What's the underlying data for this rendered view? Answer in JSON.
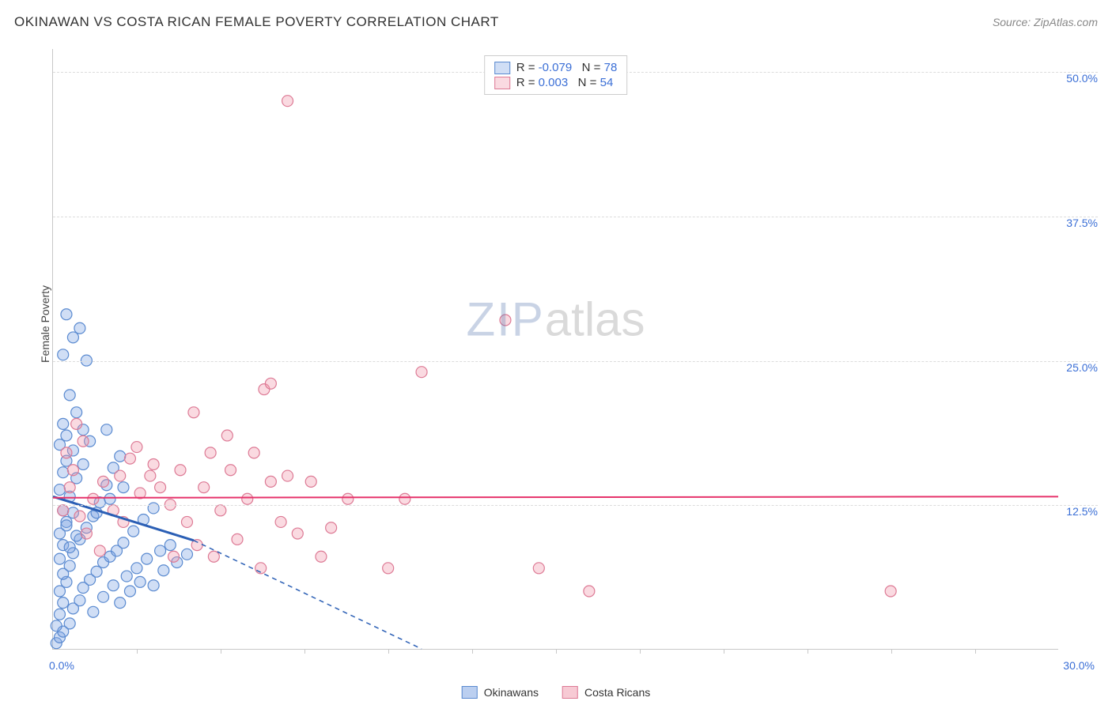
{
  "title": "OKINAWAN VS COSTA RICAN FEMALE POVERTY CORRELATION CHART",
  "source": "Source: ZipAtlas.com",
  "ylabel": "Female Poverty",
  "watermark": {
    "zip": "ZIP",
    "atlas": "atlas"
  },
  "chart": {
    "type": "scatter",
    "xlim": [
      0,
      30
    ],
    "ylim": [
      0,
      52
    ],
    "x_start_label": "0.0%",
    "x_end_label": "30.0%",
    "y_ticks": [
      {
        "v": 12.5,
        "label": "12.5%"
      },
      {
        "v": 25.0,
        "label": "25.0%"
      },
      {
        "v": 37.5,
        "label": "37.5%"
      },
      {
        "v": 50.0,
        "label": "50.0%"
      }
    ],
    "x_tick_step": 2.5,
    "background_color": "#ffffff",
    "grid_color": "#dcdcdc",
    "axis_color": "#c8c8c8",
    "marker_radius": 7,
    "marker_stroke_width": 1.2,
    "series": [
      {
        "name": "Okinawans",
        "fill": "rgba(120,160,225,0.35)",
        "stroke": "#5a8ad0",
        "r_value": "-0.079",
        "n_value": "78",
        "trend": {
          "solid_x": [
            0,
            4.2
          ],
          "solid_y": [
            13.2,
            9.4
          ],
          "dash_to_x": 11.0,
          "dash_to_y": 0,
          "color": "#2b5fb5",
          "width": 3
        },
        "points": [
          [
            0.1,
            0.5
          ],
          [
            0.2,
            1.0
          ],
          [
            0.3,
            1.5
          ],
          [
            0.1,
            2.0
          ],
          [
            0.5,
            2.2
          ],
          [
            0.2,
            3.0
          ],
          [
            0.6,
            3.5
          ],
          [
            0.3,
            4.0
          ],
          [
            0.8,
            4.2
          ],
          [
            0.2,
            5.0
          ],
          [
            0.9,
            5.3
          ],
          [
            0.4,
            5.8
          ],
          [
            1.1,
            6.0
          ],
          [
            0.3,
            6.5
          ],
          [
            1.3,
            6.7
          ],
          [
            0.5,
            7.2
          ],
          [
            1.5,
            7.5
          ],
          [
            0.2,
            7.8
          ],
          [
            1.7,
            8.0
          ],
          [
            0.6,
            8.3
          ],
          [
            1.9,
            8.5
          ],
          [
            0.3,
            9.0
          ],
          [
            2.1,
            9.2
          ],
          [
            0.8,
            9.5
          ],
          [
            0.2,
            10.0
          ],
          [
            2.4,
            10.2
          ],
          [
            1.0,
            10.5
          ],
          [
            0.4,
            11.0
          ],
          [
            2.7,
            11.2
          ],
          [
            1.2,
            11.5
          ],
          [
            0.3,
            12.0
          ],
          [
            3.0,
            12.2
          ],
          [
            1.4,
            12.7
          ],
          [
            0.5,
            13.2
          ],
          [
            0.2,
            13.8
          ],
          [
            1.6,
            14.2
          ],
          [
            0.7,
            14.8
          ],
          [
            0.3,
            15.3
          ],
          [
            1.8,
            15.7
          ],
          [
            0.4,
            16.3
          ],
          [
            2.0,
            16.7
          ],
          [
            0.6,
            17.2
          ],
          [
            0.2,
            17.7
          ],
          [
            1.1,
            18.0
          ],
          [
            0.4,
            18.5
          ],
          [
            0.9,
            19.0
          ],
          [
            1.6,
            19.0
          ],
          [
            0.3,
            19.5
          ],
          [
            0.7,
            20.5
          ],
          [
            0.5,
            22.0
          ],
          [
            1.0,
            25.0
          ],
          [
            0.3,
            25.5
          ],
          [
            0.6,
            27.0
          ],
          [
            0.8,
            27.8
          ],
          [
            0.4,
            29.0
          ],
          [
            1.2,
            3.2
          ],
          [
            1.5,
            4.5
          ],
          [
            1.8,
            5.5
          ],
          [
            2.2,
            6.3
          ],
          [
            2.5,
            7.0
          ],
          [
            2.8,
            7.8
          ],
          [
            3.2,
            8.5
          ],
          [
            3.5,
            9.0
          ],
          [
            3.0,
            5.5
          ],
          [
            3.3,
            6.8
          ],
          [
            3.7,
            7.5
          ],
          [
            4.0,
            8.2
          ],
          [
            2.0,
            4.0
          ],
          [
            2.3,
            5.0
          ],
          [
            2.6,
            5.8
          ],
          [
            1.3,
            11.8
          ],
          [
            1.7,
            13.0
          ],
          [
            2.1,
            14.0
          ],
          [
            0.9,
            16.0
          ],
          [
            0.5,
            8.8
          ],
          [
            0.7,
            9.8
          ],
          [
            0.4,
            10.7
          ],
          [
            0.6,
            11.8
          ]
        ]
      },
      {
        "name": "Costa Ricans",
        "fill": "rgba(240,150,170,0.35)",
        "stroke": "#dd7a95",
        "r_value": "0.003",
        "n_value": "54",
        "trend": {
          "solid_x": [
            0,
            30
          ],
          "solid_y": [
            13.1,
            13.2
          ],
          "color": "#e6336b",
          "width": 2
        },
        "points": [
          [
            0.3,
            12.0
          ],
          [
            0.5,
            14.0
          ],
          [
            0.8,
            11.5
          ],
          [
            0.6,
            15.5
          ],
          [
            0.4,
            17.0
          ],
          [
            0.9,
            18.0
          ],
          [
            0.7,
            19.5
          ],
          [
            1.2,
            13.0
          ],
          [
            1.5,
            14.5
          ],
          [
            1.8,
            12.0
          ],
          [
            2.0,
            15.0
          ],
          [
            2.3,
            16.5
          ],
          [
            2.1,
            11.0
          ],
          [
            2.6,
            13.5
          ],
          [
            2.9,
            15.0
          ],
          [
            2.5,
            17.5
          ],
          [
            3.2,
            14.0
          ],
          [
            3.5,
            12.5
          ],
          [
            3.0,
            16.0
          ],
          [
            3.8,
            15.5
          ],
          [
            4.0,
            11.0
          ],
          [
            4.3,
            9.0
          ],
          [
            4.5,
            14.0
          ],
          [
            4.7,
            17.0
          ],
          [
            4.2,
            20.5
          ],
          [
            5.0,
            12.0
          ],
          [
            5.3,
            15.5
          ],
          [
            5.5,
            9.5
          ],
          [
            5.8,
            13.0
          ],
          [
            6.0,
            17.0
          ],
          [
            6.2,
            7.0
          ],
          [
            6.3,
            22.5
          ],
          [
            6.5,
            14.5
          ],
          [
            6.5,
            23.0
          ],
          [
            6.8,
            11.0
          ],
          [
            7.0,
            15.0
          ],
          [
            7.3,
            10.0
          ],
          [
            7.7,
            14.5
          ],
          [
            8.0,
            8.0
          ],
          [
            8.3,
            10.5
          ],
          [
            8.8,
            13.0
          ],
          [
            10.0,
            7.0
          ],
          [
            11.0,
            24.0
          ],
          [
            10.5,
            13.0
          ],
          [
            7.0,
            47.5
          ],
          [
            13.5,
            28.5
          ],
          [
            14.5,
            7.0
          ],
          [
            16.0,
            5.0
          ],
          [
            25.0,
            5.0
          ],
          [
            1.0,
            10.0
          ],
          [
            1.4,
            8.5
          ],
          [
            3.6,
            8.0
          ],
          [
            4.8,
            8.0
          ],
          [
            5.2,
            18.5
          ]
        ]
      }
    ]
  },
  "legend_bottom": [
    {
      "label": "Okinawans",
      "fill": "rgba(120,160,225,0.5)",
      "stroke": "#5a8ad0"
    },
    {
      "label": "Costa Ricans",
      "fill": "rgba(240,150,170,0.5)",
      "stroke": "#dd7a95"
    }
  ]
}
